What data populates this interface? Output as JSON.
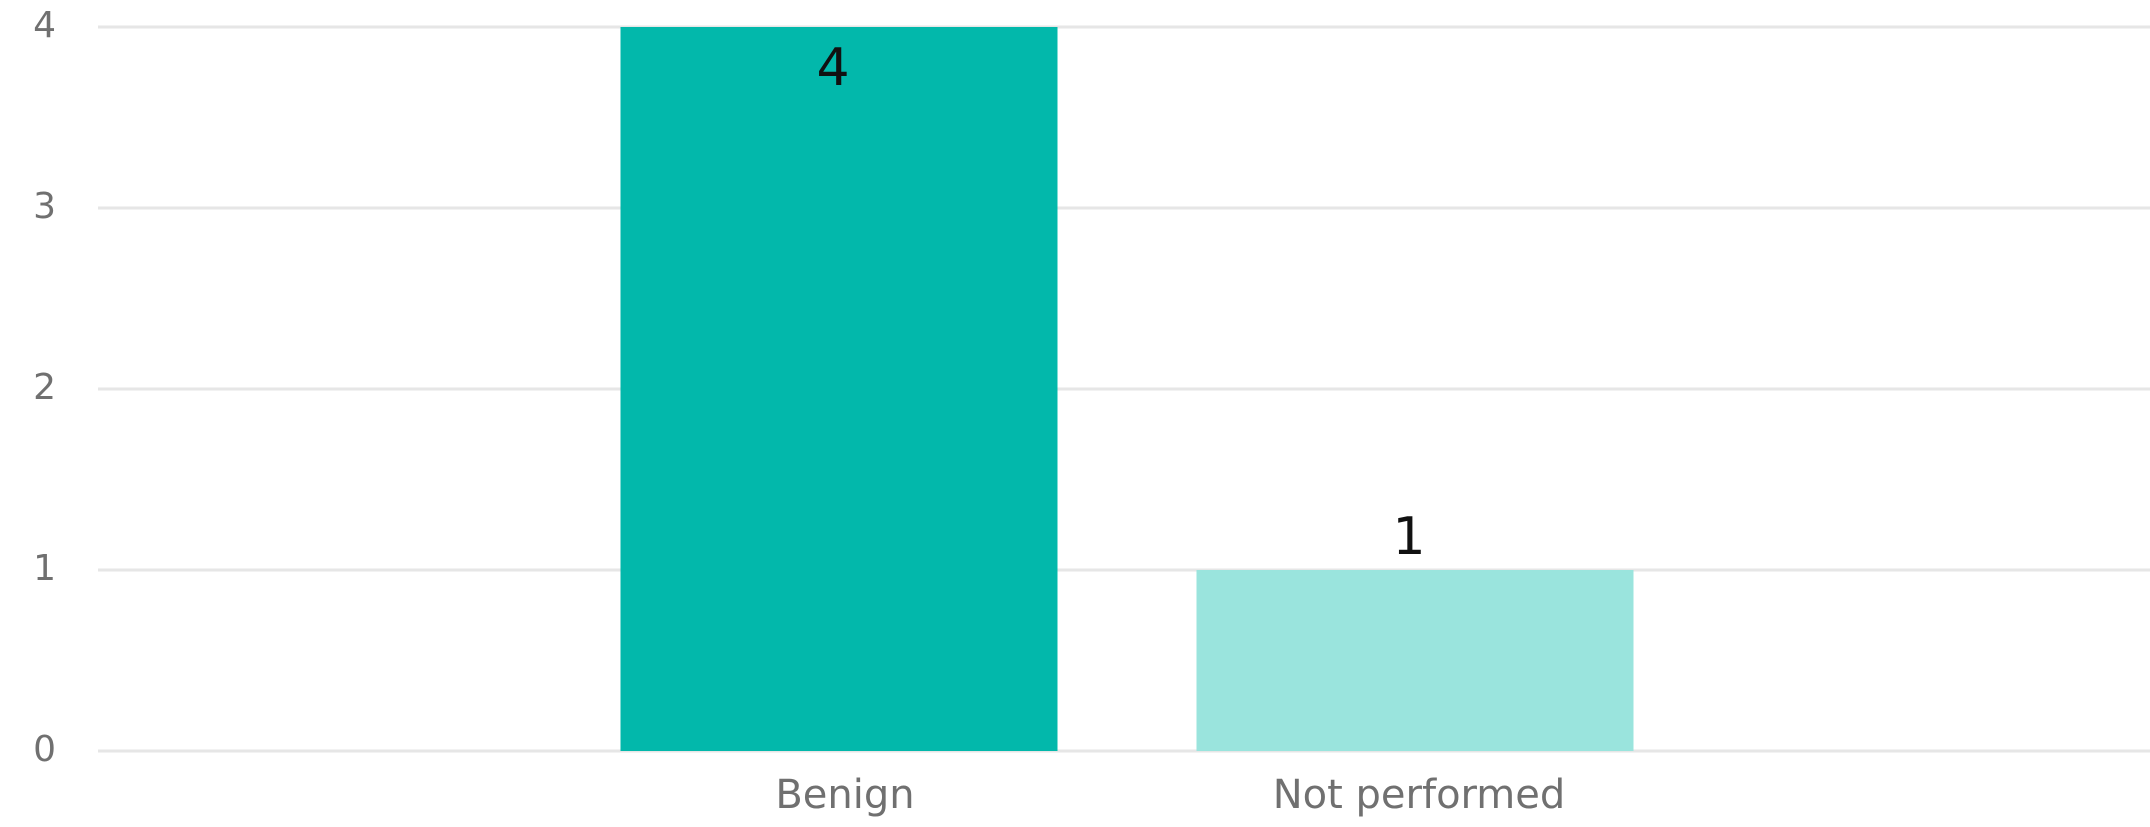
{
  "chart_data": {
    "type": "bar",
    "title": "",
    "xlabel": "",
    "ylabel": "",
    "categories": [
      "Benign",
      "Not performed"
    ],
    "values": [
      4,
      1
    ],
    "data_labels": [
      "4",
      "1"
    ],
    "ylim": [
      0,
      4
    ],
    "yticks": [
      "0",
      "1",
      "2",
      "3",
      "4"
    ],
    "grid": true,
    "legend": "none",
    "colors": [
      "#02b8ab",
      "#9ae4dd"
    ]
  }
}
